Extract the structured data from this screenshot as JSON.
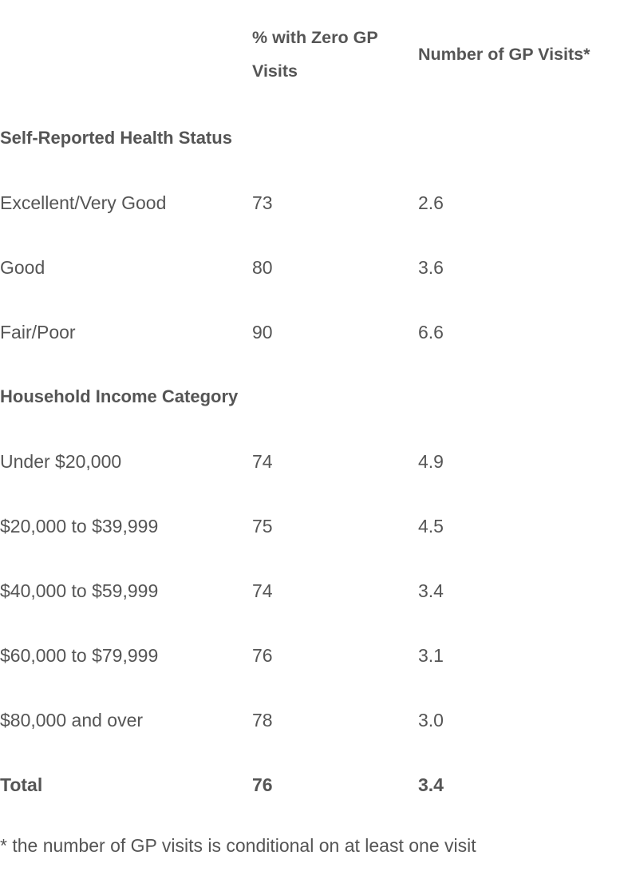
{
  "table": {
    "headers": [
      "",
      "% with Zero GP Visits",
      "Number of GP Visits*"
    ],
    "rows": [
      {
        "type": "section",
        "cells": [
          "Self-Reported Health Status",
          "",
          ""
        ]
      },
      {
        "type": "data",
        "cells": [
          "Excellent/Very Good",
          "73",
          "2.6"
        ]
      },
      {
        "type": "data",
        "cells": [
          "Good",
          "80",
          "3.6"
        ]
      },
      {
        "type": "data",
        "cells": [
          "Fair/Poor",
          "90",
          "6.6"
        ]
      },
      {
        "type": "section",
        "cells": [
          "Household Income Category",
          "",
          ""
        ]
      },
      {
        "type": "data",
        "cells": [
          "Under $20,000",
          "74",
          "4.9"
        ]
      },
      {
        "type": "data",
        "cells": [
          "$20,000 to $39,999",
          "75",
          "4.5"
        ]
      },
      {
        "type": "data",
        "cells": [
          "$40,000 to $59,999",
          "74",
          "3.4"
        ]
      },
      {
        "type": "data",
        "cells": [
          "$60,000 to $79,999",
          "76",
          "3.1"
        ]
      },
      {
        "type": "data",
        "cells": [
          "$80,000 and over",
          "78",
          "3.0"
        ]
      },
      {
        "type": "total",
        "cells": [
          "Total",
          "76",
          "3.4"
        ]
      }
    ]
  },
  "footnote": "* the number of GP visits is conditional on at least one visit",
  "colors": {
    "text": "#555555",
    "background": "#ffffff"
  }
}
